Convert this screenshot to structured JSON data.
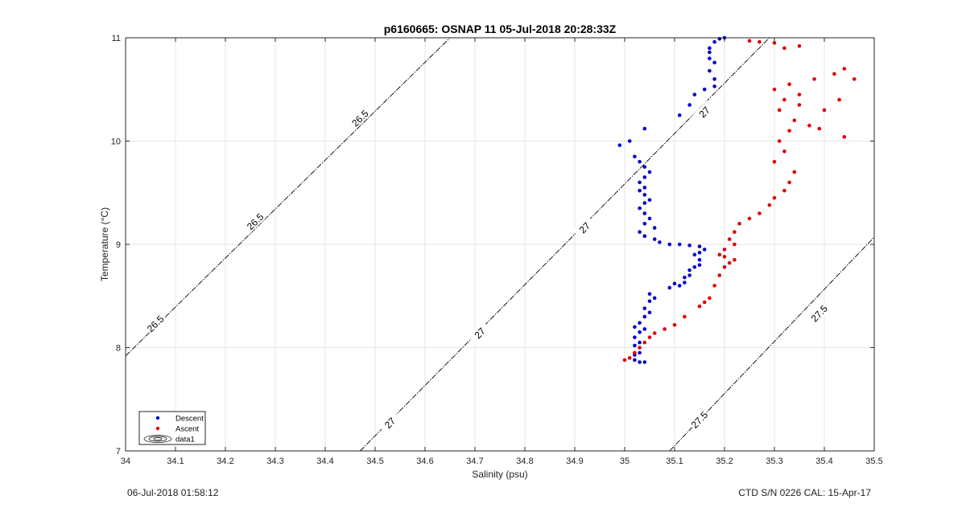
{
  "footer": {
    "left": "06-Jul-2018 01:58:12",
    "right": "CTD S/N 0226  CAL: 15-Apr-17"
  },
  "colors": {
    "descent": "#0000cc",
    "ascent": "#e00000",
    "contour": "#000000",
    "grid": "#e6e6e6"
  },
  "chart_data": {
    "type": "scatter",
    "title": "p6160665: OSNAP 11 05-Jul-2018 20:28:33Z",
    "xlabel": "Salinity (psu)",
    "ylabel": "Temperature (°C)",
    "xlim": [
      34,
      35.5
    ],
    "ylim": [
      7,
      11
    ],
    "xticks": [
      "34",
      "34.1",
      "34.2",
      "34.3",
      "34.4",
      "34.5",
      "34.6",
      "34.7",
      "34.8",
      "34.9",
      "35",
      "35.1",
      "35.2",
      "35.3",
      "35.4",
      "35.5"
    ],
    "yticks": [
      "7",
      "8",
      "9",
      "10",
      "11"
    ],
    "grid": true,
    "legend_position": "bottom-left",
    "legend": [
      "Descent",
      "Ascent",
      "data1"
    ],
    "contours": [
      {
        "label": "26.5",
        "points": [
          [
            34.0,
            7.92
          ],
          [
            34.65,
            11.0
          ]
        ],
        "label_positions": [
          [
            34.06,
            8.23
          ],
          [
            34.26,
            9.22
          ],
          [
            34.47,
            10.22
          ]
        ]
      },
      {
        "label": "27",
        "points": [
          [
            34.47,
            7.0
          ],
          [
            35.29,
            11.0
          ]
        ],
        "label_positions": [
          [
            34.53,
            7.27
          ],
          [
            34.71,
            8.14
          ],
          [
            34.92,
            9.16
          ],
          [
            35.16,
            10.28
          ]
        ]
      },
      {
        "label": "27.5",
        "points": [
          [
            35.09,
            7.0
          ],
          [
            35.5,
            9.07
          ]
        ],
        "label_positions": [
          [
            35.15,
            7.3
          ],
          [
            35.39,
            8.33
          ]
        ]
      }
    ],
    "series": [
      {
        "name": "Descent",
        "points": [
          [
            35.02,
            7.88
          ],
          [
            35.03,
            7.86
          ],
          [
            35.02,
            7.93
          ],
          [
            35.04,
            7.86
          ],
          [
            35.03,
            7.95
          ],
          [
            35.02,
            8.02
          ],
          [
            35.03,
            8.05
          ],
          [
            35.02,
            8.1
          ],
          [
            35.03,
            8.15
          ],
          [
            35.02,
            8.2
          ],
          [
            35.03,
            8.24
          ],
          [
            35.04,
            8.18
          ],
          [
            35.04,
            8.3
          ],
          [
            35.05,
            8.34
          ],
          [
            35.04,
            8.38
          ],
          [
            35.05,
            8.45
          ],
          [
            35.05,
            8.52
          ],
          [
            35.06,
            8.48
          ],
          [
            35.09,
            8.58
          ],
          [
            35.1,
            8.62
          ],
          [
            35.11,
            8.6
          ],
          [
            35.12,
            8.63
          ],
          [
            35.12,
            8.68
          ],
          [
            35.13,
            8.7
          ],
          [
            35.13,
            8.75
          ],
          [
            35.14,
            8.78
          ],
          [
            35.15,
            8.8
          ],
          [
            35.15,
            8.85
          ],
          [
            35.14,
            8.9
          ],
          [
            35.15,
            8.92
          ],
          [
            35.16,
            8.95
          ],
          [
            35.15,
            8.98
          ],
          [
            35.13,
            8.99
          ],
          [
            35.11,
            9.0
          ],
          [
            35.09,
            9.0
          ],
          [
            35.07,
            9.02
          ],
          [
            35.06,
            9.05
          ],
          [
            35.04,
            9.08
          ],
          [
            35.03,
            9.12
          ],
          [
            35.06,
            9.16
          ],
          [
            35.04,
            9.2
          ],
          [
            35.05,
            9.25
          ],
          [
            35.04,
            9.3
          ],
          [
            35.03,
            9.35
          ],
          [
            35.04,
            9.4
          ],
          [
            35.05,
            9.43
          ],
          [
            35.04,
            9.48
          ],
          [
            35.03,
            9.52
          ],
          [
            35.04,
            9.55
          ],
          [
            35.03,
            9.6
          ],
          [
            35.04,
            9.65
          ],
          [
            35.05,
            9.7
          ],
          [
            35.04,
            9.75
          ],
          [
            35.03,
            9.8
          ],
          [
            35.02,
            9.85
          ],
          [
            35.01,
            10.0
          ],
          [
            34.99,
            9.96
          ],
          [
            35.04,
            10.12
          ],
          [
            35.11,
            10.25
          ],
          [
            35.13,
            10.35
          ],
          [
            35.14,
            10.45
          ],
          [
            35.16,
            10.5
          ],
          [
            35.18,
            10.53
          ],
          [
            35.18,
            10.6
          ],
          [
            35.17,
            10.68
          ],
          [
            35.18,
            10.76
          ],
          [
            35.17,
            10.8
          ],
          [
            35.17,
            10.86
          ],
          [
            35.17,
            10.9
          ],
          [
            35.18,
            10.96
          ],
          [
            35.19,
            10.99
          ],
          [
            35.2,
            11.0
          ]
        ]
      },
      {
        "name": "Ascent",
        "points": [
          [
            35.0,
            7.88
          ],
          [
            35.01,
            7.9
          ],
          [
            35.02,
            7.95
          ],
          [
            35.03,
            8.0
          ],
          [
            35.04,
            8.05
          ],
          [
            35.05,
            8.1
          ],
          [
            35.06,
            8.14
          ],
          [
            35.08,
            8.18
          ],
          [
            35.1,
            8.22
          ],
          [
            35.12,
            8.3
          ],
          [
            35.15,
            8.4
          ],
          [
            35.16,
            8.44
          ],
          [
            35.17,
            8.48
          ],
          [
            35.18,
            8.6
          ],
          [
            35.19,
            8.7
          ],
          [
            35.2,
            8.78
          ],
          [
            35.21,
            8.82
          ],
          [
            35.22,
            8.85
          ],
          [
            35.2,
            8.88
          ],
          [
            35.19,
            8.9
          ],
          [
            35.2,
            8.95
          ],
          [
            35.22,
            9.0
          ],
          [
            35.21,
            9.05
          ],
          [
            35.22,
            9.12
          ],
          [
            35.23,
            9.2
          ],
          [
            35.25,
            9.25
          ],
          [
            35.27,
            9.3
          ],
          [
            35.29,
            9.38
          ],
          [
            35.3,
            9.45
          ],
          [
            35.32,
            9.52
          ],
          [
            35.33,
            9.6
          ],
          [
            35.34,
            9.7
          ],
          [
            35.3,
            9.8
          ],
          [
            35.32,
            9.9
          ],
          [
            35.31,
            10.0
          ],
          [
            35.33,
            10.1
          ],
          [
            35.34,
            10.2
          ],
          [
            35.31,
            10.3
          ],
          [
            35.32,
            10.4
          ],
          [
            35.35,
            10.45
          ],
          [
            35.3,
            10.5
          ],
          [
            35.33,
            10.55
          ],
          [
            35.38,
            10.6
          ],
          [
            35.42,
            10.65
          ],
          [
            35.44,
            10.7
          ],
          [
            35.46,
            10.6
          ],
          [
            35.43,
            10.4
          ],
          [
            35.4,
            10.3
          ],
          [
            35.37,
            10.15
          ],
          [
            35.44,
            10.04
          ],
          [
            35.39,
            10.12
          ],
          [
            35.35,
            10.35
          ],
          [
            35.35,
            10.92
          ],
          [
            35.32,
            10.9
          ],
          [
            35.3,
            10.95
          ],
          [
            35.27,
            10.96
          ],
          [
            35.25,
            10.97
          ]
        ]
      }
    ]
  }
}
